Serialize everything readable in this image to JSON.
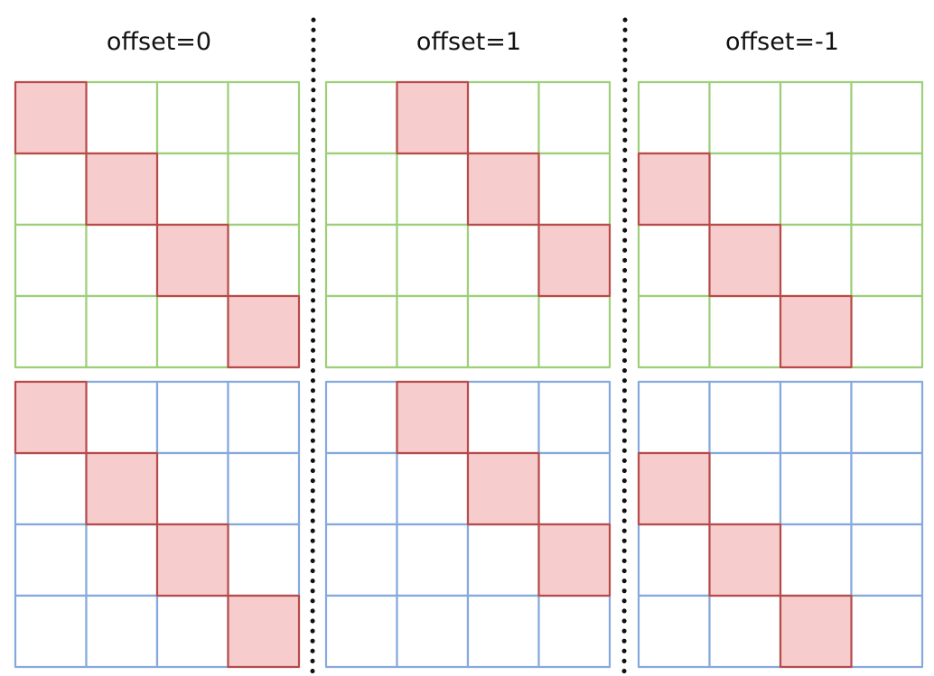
{
  "panels": [
    {
      "title": "offset=0",
      "offset": 0
    },
    {
      "title": "offset=1",
      "offset": 1
    },
    {
      "title": "offset=-1",
      "offset": -1
    }
  ],
  "grid_size": 4,
  "grids": [
    {
      "name": "top",
      "line_color": "#9dcf79"
    },
    {
      "name": "bottom",
      "line_color": "#86a9dd"
    }
  ],
  "highlight": {
    "fill_color": "#f6cccc",
    "border_color": "#b84a4a"
  },
  "divider_color": "#111111"
}
